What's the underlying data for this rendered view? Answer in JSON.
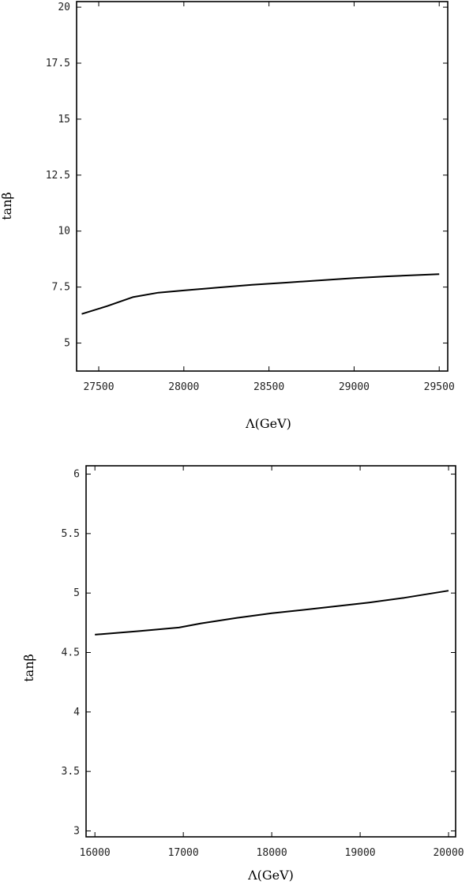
{
  "chart_data": [
    {
      "type": "line",
      "xlabel": "Λ(GeV)",
      "ylabel": "tanβ",
      "xlim": [
        27370,
        29550
      ],
      "ylim": [
        3.75,
        20.25
      ],
      "xticks": [
        {
          "value": 27500,
          "label": "27500"
        },
        {
          "value": 28000,
          "label": "28000"
        },
        {
          "value": 28500,
          "label": "28500"
        },
        {
          "value": 29000,
          "label": "29000"
        },
        {
          "value": 29500,
          "label": "29500"
        }
      ],
      "yticks": [
        {
          "value": 5,
          "label": "5"
        },
        {
          "value": 7.5,
          "label": "7.5"
        },
        {
          "value": 10,
          "label": "10"
        },
        {
          "value": 12.5,
          "label": "12.5"
        },
        {
          "value": 15,
          "label": "15"
        },
        {
          "value": 17.5,
          "label": "17.5"
        },
        {
          "value": 20,
          "label": "20"
        }
      ],
      "grid": false,
      "series": [
        {
          "x": [
            27400,
            27550,
            27700,
            27850,
            28000,
            28200,
            28400,
            28600,
            28800,
            29000,
            29200,
            29500
          ],
          "y": [
            6.3,
            6.65,
            7.05,
            7.25,
            7.35,
            7.48,
            7.6,
            7.7,
            7.8,
            7.9,
            7.98,
            8.08
          ]
        }
      ]
    },
    {
      "type": "line",
      "xlabel": "Λ(GeV)",
      "ylabel": "tanβ",
      "xlim": [
        15900,
        20080
      ],
      "ylim": [
        2.95,
        6.07
      ],
      "xticks": [
        {
          "value": 16000,
          "label": "16000"
        },
        {
          "value": 17000,
          "label": "17000"
        },
        {
          "value": 18000,
          "label": "18000"
        },
        {
          "value": 19000,
          "label": "19000"
        },
        {
          "value": 20000,
          "label": "20000"
        }
      ],
      "yticks": [
        {
          "value": 3,
          "label": "3"
        },
        {
          "value": 3.5,
          "label": "3.5"
        },
        {
          "value": 4,
          "label": "4"
        },
        {
          "value": 4.5,
          "label": "4.5"
        },
        {
          "value": 5,
          "label": "5"
        },
        {
          "value": 5.5,
          "label": "5.5"
        },
        {
          "value": 6,
          "label": "6"
        }
      ],
      "grid": false,
      "series": [
        {
          "x": [
            16000,
            16500,
            16950,
            17200,
            17600,
            18000,
            18500,
            19100,
            19500,
            20000
          ],
          "y": [
            4.65,
            4.68,
            4.71,
            4.745,
            4.79,
            4.83,
            4.87,
            4.92,
            4.96,
            5.02
          ]
        }
      ]
    }
  ]
}
